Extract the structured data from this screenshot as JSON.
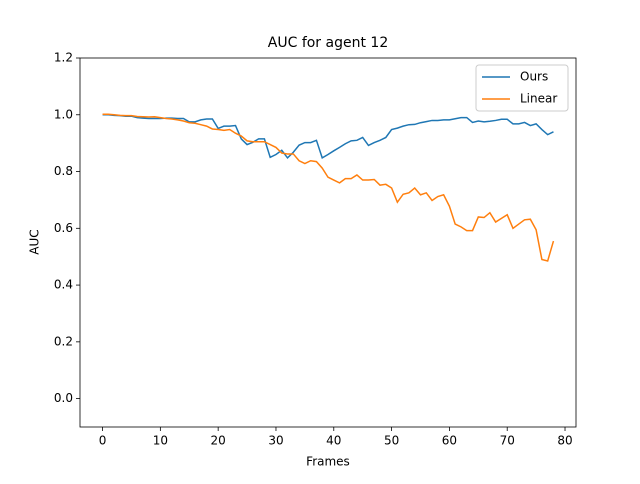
{
  "chart_data": {
    "type": "line",
    "title": "AUC for agent 12",
    "xlabel": "Frames",
    "ylabel": "AUC",
    "x": [
      0,
      1,
      2,
      3,
      4,
      5,
      6,
      7,
      8,
      9,
      10,
      11,
      12,
      13,
      14,
      15,
      16,
      17,
      18,
      19,
      20,
      21,
      22,
      23,
      24,
      25,
      26,
      27,
      28,
      29,
      30,
      31,
      32,
      33,
      34,
      35,
      36,
      37,
      38,
      39,
      40,
      41,
      42,
      43,
      44,
      45,
      46,
      47,
      48,
      49,
      50,
      51,
      52,
      53,
      54,
      55,
      56,
      57,
      58,
      59,
      60,
      61,
      62,
      63,
      64,
      65,
      66,
      67,
      68,
      69,
      70,
      71,
      72,
      73,
      74,
      75,
      76,
      77,
      78
    ],
    "series": [
      {
        "name": "Ours",
        "color": "#1f77b4",
        "values": [
          1.0,
          1.0,
          0.998,
          0.997,
          0.995,
          0.995,
          0.99,
          0.988,
          0.987,
          0.987,
          0.987,
          0.988,
          0.988,
          0.987,
          0.987,
          0.975,
          0.975,
          0.982,
          0.985,
          0.985,
          0.952,
          0.96,
          0.96,
          0.962,
          0.915,
          0.895,
          0.903,
          0.915,
          0.915,
          0.85,
          0.86,
          0.875,
          0.848,
          0.868,
          0.893,
          0.902,
          0.902,
          0.91,
          0.848,
          0.86,
          0.873,
          0.885,
          0.898,
          0.908,
          0.91,
          0.92,
          0.892,
          0.902,
          0.91,
          0.92,
          0.948,
          0.953,
          0.96,
          0.965,
          0.966,
          0.972,
          0.976,
          0.98,
          0.98,
          0.982,
          0.982,
          0.986,
          0.99,
          0.99,
          0.973,
          0.978,
          0.975,
          0.977,
          0.98,
          0.984,
          0.984,
          0.968,
          0.968,
          0.973,
          0.962,
          0.968,
          0.948,
          0.93,
          0.94
        ]
      },
      {
        "name": "Linear",
        "color": "#ff7f0e",
        "values": [
          1.002,
          1.002,
          1.0,
          0.998,
          0.997,
          0.997,
          0.994,
          0.993,
          0.992,
          0.993,
          0.99,
          0.987,
          0.985,
          0.982,
          0.978,
          0.972,
          0.97,
          0.965,
          0.96,
          0.95,
          0.948,
          0.945,
          0.948,
          0.935,
          0.925,
          0.908,
          0.905,
          0.905,
          0.905,
          0.895,
          0.885,
          0.865,
          0.862,
          0.862,
          0.838,
          0.828,
          0.838,
          0.835,
          0.812,
          0.78,
          0.77,
          0.76,
          0.775,
          0.775,
          0.788,
          0.77,
          0.77,
          0.772,
          0.752,
          0.755,
          0.742,
          0.692,
          0.72,
          0.725,
          0.742,
          0.718,
          0.725,
          0.698,
          0.712,
          0.718,
          0.678,
          0.615,
          0.605,
          0.592,
          0.592,
          0.64,
          0.638,
          0.655,
          0.622,
          0.635,
          0.648,
          0.6,
          0.615,
          0.63,
          0.632,
          0.595,
          0.49,
          0.485,
          0.555
        ]
      }
    ],
    "xlim": [
      -3.9,
      81.9
    ],
    "xticks": [
      0,
      10,
      20,
      30,
      40,
      50,
      60,
      70,
      80
    ],
    "ylim": [
      -0.1,
      1.2
    ],
    "yticks": [
      {
        "value": 0,
        "label": "0.0"
      },
      0.2,
      0.4,
      0.6,
      0.8,
      {
        "value": 1,
        "label": "1.0"
      },
      1.2
    ],
    "legend": "upper right"
  }
}
